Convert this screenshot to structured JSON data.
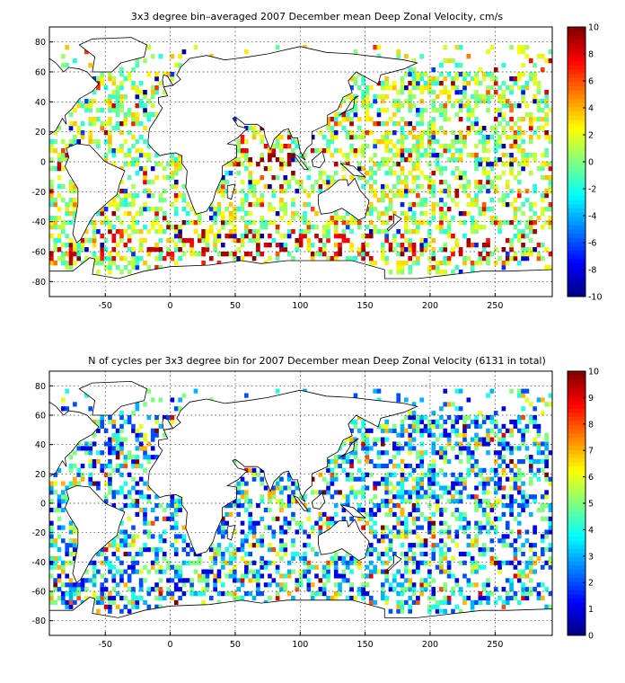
{
  "chart_data": [
    {
      "type": "heatmap",
      "title": "3x3 degree bin–averaged 2007 December mean Deep Zonal Velocity, cm/s",
      "xlabel": "",
      "ylabel": "",
      "xlim": [
        -93,
        294
      ],
      "ylim": [
        -90,
        90
      ],
      "xticks": [
        -50,
        0,
        50,
        100,
        150,
        200,
        250
      ],
      "yticks": [
        -80,
        -60,
        -40,
        -20,
        0,
        20,
        40,
        60,
        80
      ],
      "grid": true,
      "bin_size_deg": 3,
      "colorbar": {
        "min": -10,
        "max": 10,
        "ticks": [
          -10,
          -8,
          -6,
          -4,
          -2,
          0,
          2,
          4,
          6,
          8,
          10
        ],
        "colormap": "jet"
      },
      "distribution": "sparse 3x3 bins over ocean areas; values mostly between -2 and 4 cm/s, strong eastward (~10) bins in Southern Ocean near -55°, Indian Ocean equatorial band near 80°E"
    },
    {
      "type": "heatmap",
      "title": "N of cycles per 3x3 degree bin for 2007 December mean Deep Zonal Velocity (6131 in total)",
      "xlabel": "",
      "ylabel": "",
      "xlim": [
        -93,
        294
      ],
      "ylim": [
        -90,
        90
      ],
      "xticks": [
        -50,
        0,
        50,
        100,
        150,
        200,
        250
      ],
      "yticks": [
        -80,
        -60,
        -40,
        -20,
        0,
        20,
        40,
        60,
        80
      ],
      "grid": true,
      "bin_size_deg": 3,
      "colorbar": {
        "min": 0,
        "max": 10,
        "ticks": [
          0,
          1,
          2,
          3,
          4,
          5,
          6,
          7,
          8,
          9,
          10
        ],
        "colormap": "jet"
      },
      "distribution": "counts mostly 1–6 per bin, same spatial coverage as the velocity map"
    }
  ]
}
